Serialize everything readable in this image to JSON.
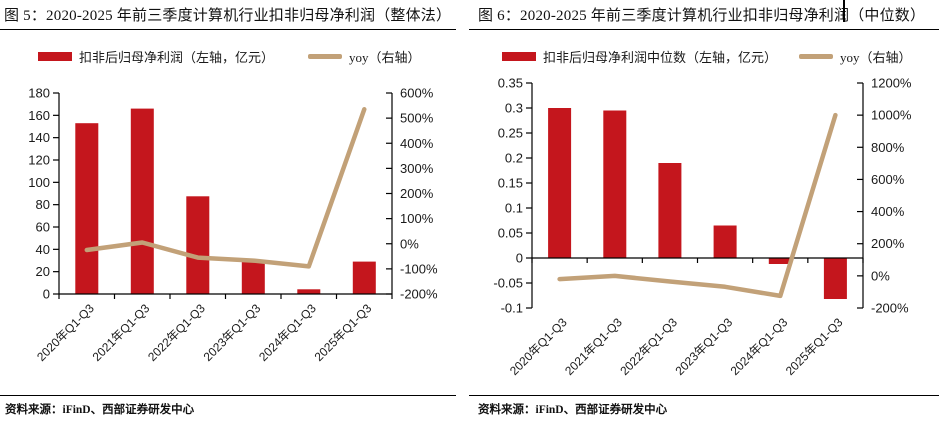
{
  "colors": {
    "bar_red": "#C4161D",
    "line_tan": "#C2A178",
    "axis_black": "#000000",
    "text": "#1a1a1a"
  },
  "footers": [
    "资料来源：iFinD、西部证券研发中心",
    "资料来源：iFinD、西部证券研发中心"
  ],
  "chart_data": [
    {
      "type": "bar+line",
      "title": "图 5：2020-2025 年前三季度计算机行业扣非归母净利润（整体法）",
      "categories": [
        "2020年Q1-Q3",
        "2021年Q1-Q3",
        "2022年Q1-Q3",
        "2023年Q1-Q3",
        "2024年Q1-Q3",
        "2025年Q1-Q3"
      ],
      "series": [
        {
          "name": "扣非后归母净利润（左轴，亿元）",
          "type": "bar",
          "axis": "left",
          "color": "#C4161D",
          "values": [
            153,
            166,
            87.5,
            30.5,
            4.2,
            29
          ]
        },
        {
          "name": "yoy（右轴）",
          "type": "line",
          "axis": "right",
          "unit": "%",
          "color": "#C2A178",
          "values": [
            -25,
            5,
            -55,
            -67,
            -90,
            535
          ]
        }
      ],
      "left_axis": {
        "min": 0,
        "max": 180,
        "step": 20
      },
      "right_axis": {
        "min": -200,
        "max": 600,
        "step": 100,
        "unit": "%"
      },
      "grid": false,
      "legend_position": "top"
    },
    {
      "type": "bar+line",
      "title": "图 6：2020-2025 年前三季度计算机行业扣非归母净利润（中位数）",
      "categories": [
        "2020年Q1-Q3",
        "2021年Q1-Q3",
        "2022年Q1-Q3",
        "2023年Q1-Q3",
        "2024年Q1-Q3",
        "2025年Q1-Q3"
      ],
      "series": [
        {
          "name": "扣非后归母净利润中位数（左轴，亿元）",
          "type": "bar",
          "axis": "left",
          "color": "#C4161D",
          "values": [
            0.3,
            0.295,
            0.19,
            0.065,
            -0.012,
            -0.082
          ]
        },
        {
          "name": "yoy（右轴）",
          "type": "line",
          "axis": "right",
          "unit": "%",
          "color": "#C2A178",
          "values": [
            -20,
            0,
            -35,
            -68,
            -125,
            1000
          ]
        }
      ],
      "left_axis": {
        "min": -0.1,
        "max": 0.35,
        "step": 0.05
      },
      "right_axis": {
        "min": -200,
        "max": 1200,
        "step": 200,
        "unit": "%"
      },
      "grid": false,
      "legend_position": "top"
    }
  ]
}
